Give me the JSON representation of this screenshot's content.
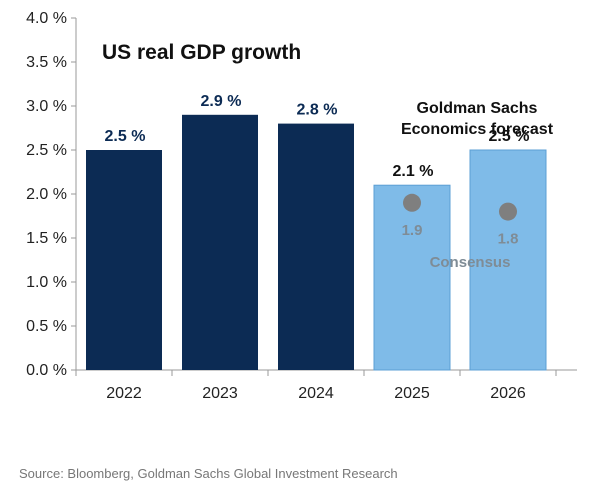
{
  "chart_data": {
    "type": "bar",
    "title": "US real GDP growth",
    "categories": [
      "2022",
      "2023",
      "2024",
      "2025",
      "2026"
    ],
    "values": [
      2.5,
      2.9,
      2.8,
      2.1,
      2.5
    ],
    "value_labels": [
      "2.5 %",
      "2.9 %",
      "2.8 %",
      "2.1 %",
      "2.5 %"
    ],
    "bar_kind": [
      "actual",
      "actual",
      "actual",
      "forecast",
      "forecast"
    ],
    "ylim": [
      0,
      4
    ],
    "yticks": [
      0,
      0.5,
      1,
      1.5,
      2,
      2.5,
      3,
      3.5,
      4
    ],
    "ytick_labels": [
      "0.0 %",
      "0.5 %",
      "1.0 %",
      "1.5 %",
      "2.0 %",
      "2.5 %",
      "3.0 %",
      "3.5 %",
      "4.0 %"
    ],
    "xlabel": "",
    "ylabel": "",
    "grid": false,
    "forecast_annotation": [
      "Goldman Sachs",
      "Economics forecast"
    ],
    "consensus": {
      "label": "Consensus",
      "points": [
        {
          "category": "2025",
          "value": 1.9,
          "label": "1.9"
        },
        {
          "category": "2026",
          "value": 1.8,
          "label": "1.8"
        }
      ]
    },
    "colors": {
      "actual": "#0c2b54",
      "forecast": "#7fbbe8",
      "forecast_border": "#5b9fd4",
      "actual_label": "#0c2b54",
      "forecast_label": "#111111",
      "consensus_marker": "#7f7f7f",
      "axis": "#9a9a9a"
    }
  },
  "source": "Source: Bloomberg, Goldman Sachs Global Investment Research"
}
